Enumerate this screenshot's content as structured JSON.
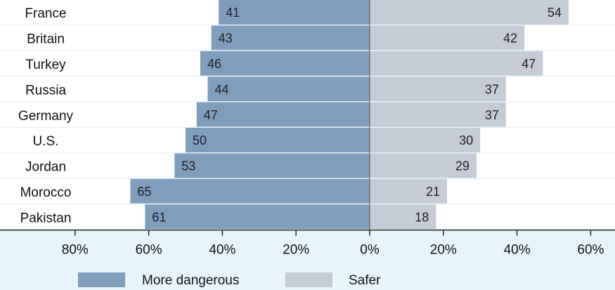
{
  "chart_data": {
    "type": "bar",
    "orientation": "horizontal-diverging",
    "categories": [
      "France",
      "Britain",
      "Turkey",
      "Russia",
      "Germany",
      "U.S.",
      "Jordan",
      "Morocco",
      "Pakistan"
    ],
    "series": [
      {
        "name": "More dangerous",
        "direction": "left",
        "values": [
          41,
          43,
          46,
          44,
          47,
          50,
          53,
          65,
          61
        ],
        "color": "#7f9dbd"
      },
      {
        "name": "Safer",
        "direction": "right",
        "values": [
          54,
          42,
          47,
          37,
          37,
          30,
          29,
          21,
          18
        ],
        "color": "#c5ccd6"
      }
    ],
    "xlim": [
      -80,
      60
    ],
    "x_ticks": [
      -80,
      -60,
      -40,
      -20,
      0,
      20,
      40,
      60
    ],
    "x_tick_labels": [
      "80%",
      "60%",
      "40%",
      "20%",
      "0%",
      "20%",
      "40%",
      "60%"
    ],
    "legend": {
      "placement": "bottom"
    },
    "grid": false,
    "colors": {
      "background": "#e8f4fb",
      "divider": "#555555"
    }
  }
}
